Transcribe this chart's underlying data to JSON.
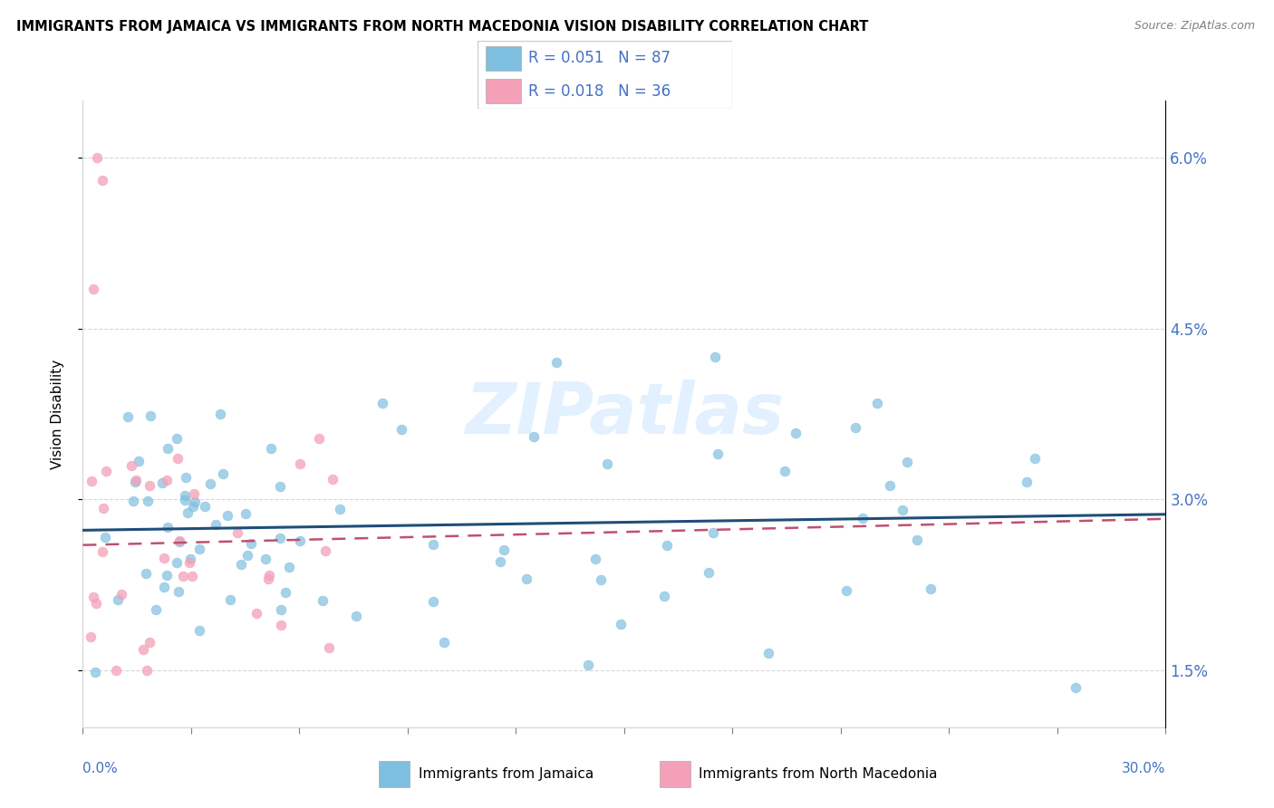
{
  "title": "IMMIGRANTS FROM JAMAICA VS IMMIGRANTS FROM NORTH MACEDONIA VISION DISABILITY CORRELATION CHART",
  "source": "Source: ZipAtlas.com",
  "ylabel": "Vision Disability",
  "ytick_vals": [
    1.5,
    3.0,
    4.5,
    6.0
  ],
  "ytick_labels": [
    "1.5%",
    "3.0%",
    "4.5%",
    "6.0%"
  ],
  "xmin": 0.0,
  "xmax": 30.0,
  "ymin": 1.0,
  "ymax": 6.5,
  "legend_text1": "R = 0.051   N = 87",
  "legend_text2": "R = 0.018   N = 36",
  "color_jamaica": "#7FBFDF",
  "color_macedonia": "#F4A0B8",
  "color_blue": "#4472C4",
  "color_trend_jamaica": "#1F4E79",
  "color_trend_macedonia": "#C05070",
  "watermark": "ZIPatlas",
  "background_color": "#FFFFFF",
  "grid_color": "#CCCCCC",
  "jamaica_trend_x0": 0.0,
  "jamaica_trend_y0": 2.73,
  "jamaica_trend_x1": 30.0,
  "jamaica_trend_y1": 2.87,
  "macedonia_trend_x0": 0.0,
  "macedonia_trend_y0": 2.6,
  "macedonia_trend_x1": 30.0,
  "macedonia_trend_y1": 2.83
}
